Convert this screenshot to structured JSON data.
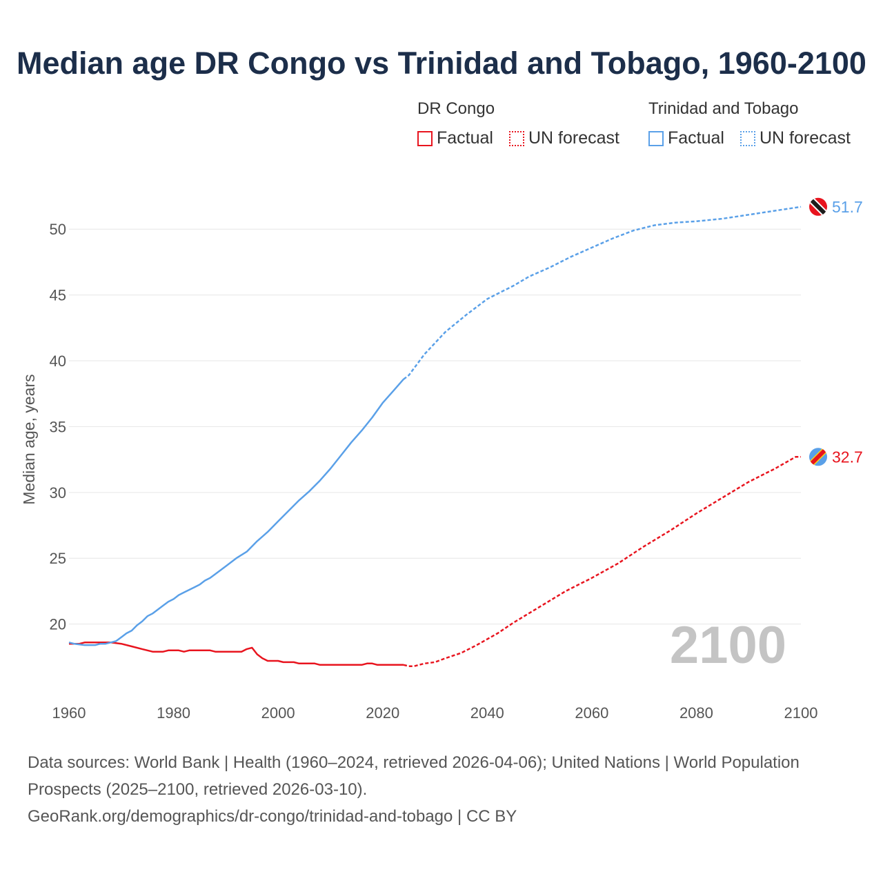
{
  "title": "Median age DR Congo vs Trinidad and Tobago, 1960-2100",
  "legend": {
    "groups": [
      {
        "name": "DR Congo",
        "color": "#e8141e",
        "factual_label": "Factual",
        "forecast_label": "UN forecast"
      },
      {
        "name": "Trinidad and Tobago",
        "color": "#5aa0e8",
        "factual_label": "Factual",
        "forecast_label": "UN forecast"
      }
    ]
  },
  "watermark_year": "2100",
  "source": {
    "line1": "Data sources: World Bank | Health (1960–2024, retrieved 2026-04-06); United Nations | World Population Prospects (2025–2100, retrieved 2026-03-10).",
    "line2": "GeoRank.org/demographics/dr-congo/trinidad-and-tobago | CC BY"
  },
  "chart_data": {
    "type": "line",
    "title": "Median age DR Congo vs Trinidad and Tobago, 1960-2100",
    "xlabel": "",
    "ylabel": "Median age, years",
    "xlim": [
      1960,
      2100
    ],
    "ylim": [
      15,
      53
    ],
    "x_ticks": [
      1960,
      1980,
      2000,
      2020,
      2040,
      2060,
      2080,
      2100
    ],
    "y_ticks": [
      20,
      25,
      30,
      35,
      40,
      45,
      50
    ],
    "grid": true,
    "factual_end_year": 2024,
    "forecast_start_year": 2025,
    "series": [
      {
        "name": "DR Congo",
        "color": "#e8141e",
        "end_label": "32.7",
        "x": [
          1960,
          1962,
          1963,
          1965,
          1968,
          1970,
          1972,
          1974,
          1976,
          1978,
          1979,
          1981,
          1982,
          1983,
          1984,
          1986,
          1987,
          1988,
          1990,
          1992,
          1993,
          1994,
          1995,
          1996,
          1997,
          1998,
          2000,
          2001,
          2003,
          2004,
          2006,
          2007,
          2008,
          2010,
          2015,
          2016,
          2017,
          2018,
          2019,
          2022,
          2024,
          2025,
          2026,
          2028,
          2030,
          2032,
          2035,
          2038,
          2042,
          2045,
          2050,
          2055,
          2060,
          2065,
          2070,
          2075,
          2080,
          2085,
          2090,
          2095,
          2099,
          2100
        ],
        "y": [
          18.5,
          18.5,
          18.6,
          18.6,
          18.6,
          18.5,
          18.3,
          18.1,
          17.9,
          17.9,
          18.0,
          18.0,
          17.9,
          18.0,
          18.0,
          18.0,
          18.0,
          17.9,
          17.9,
          17.9,
          17.9,
          18.1,
          18.2,
          17.7,
          17.4,
          17.2,
          17.2,
          17.1,
          17.1,
          17.0,
          17.0,
          17.0,
          16.9,
          16.9,
          16.9,
          16.9,
          17.0,
          17.0,
          16.9,
          16.9,
          16.9,
          16.8,
          16.8,
          17.0,
          17.1,
          17.4,
          17.8,
          18.4,
          19.3,
          20.1,
          21.3,
          22.5,
          23.5,
          24.6,
          25.9,
          27.1,
          28.4,
          29.6,
          30.8,
          31.8,
          32.7,
          32.7
        ]
      },
      {
        "name": "Trinidad and Tobago",
        "color": "#5aa0e8",
        "end_label": "51.7",
        "x": [
          1960,
          1961,
          1963,
          1965,
          1966,
          1967,
          1968,
          1969,
          1970,
          1971,
          1972,
          1973,
          1974,
          1975,
          1976,
          1977,
          1978,
          1979,
          1980,
          1981,
          1982,
          1983,
          1984,
          1985,
          1986,
          1987,
          1988,
          1990,
          1992,
          1994,
          1996,
          1998,
          2000,
          2002,
          2004,
          2006,
          2008,
          2010,
          2012,
          2014,
          2016,
          2018,
          2020,
          2022,
          2024,
          2025,
          2028,
          2032,
          2036,
          2040,
          2043,
          2045,
          2048,
          2052,
          2056,
          2060,
          2064,
          2068,
          2072,
          2076,
          2080,
          2085,
          2090,
          2095,
          2100
        ],
        "y": [
          18.6,
          18.5,
          18.4,
          18.4,
          18.5,
          18.5,
          18.6,
          18.7,
          19.0,
          19.3,
          19.5,
          19.9,
          20.2,
          20.6,
          20.8,
          21.1,
          21.4,
          21.7,
          21.9,
          22.2,
          22.4,
          22.6,
          22.8,
          23.0,
          23.3,
          23.5,
          23.8,
          24.4,
          25.0,
          25.5,
          26.3,
          27.0,
          27.8,
          28.6,
          29.4,
          30.1,
          30.9,
          31.8,
          32.8,
          33.8,
          34.7,
          35.7,
          36.8,
          37.7,
          38.6,
          38.9,
          40.5,
          42.2,
          43.5,
          44.7,
          45.3,
          45.7,
          46.4,
          47.1,
          47.9,
          48.6,
          49.3,
          49.9,
          50.3,
          50.5,
          50.6,
          50.8,
          51.1,
          51.4,
          51.7
        ]
      }
    ]
  }
}
